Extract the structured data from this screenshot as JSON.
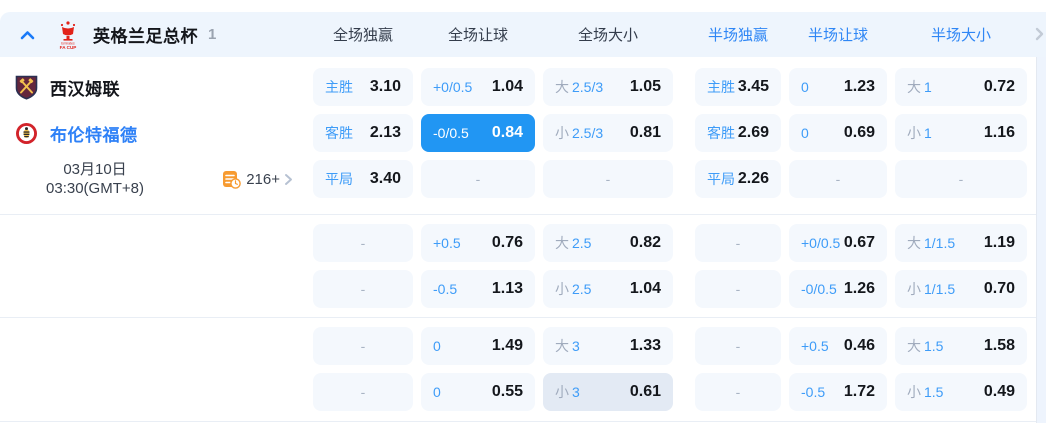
{
  "header": {
    "league_title": "英格兰足总杯",
    "match_count": "1",
    "columns": [
      {
        "label": "全场独赢",
        "half": false
      },
      {
        "label": "全场让球",
        "half": false
      },
      {
        "label": "全场大小",
        "half": false
      },
      {
        "label": "半场独赢",
        "half": true
      },
      {
        "label": "半场让球",
        "half": true
      },
      {
        "label": "半场大小",
        "half": true
      }
    ]
  },
  "match": {
    "home_team": "西汉姆联",
    "away_team": "布伦特福德",
    "date": "03月10日",
    "time": "03:30(GMT+8)",
    "markets_count": "216+"
  },
  "colors": {
    "accent_blue": "#2e86f5",
    "label_blue": "#3e9cf8",
    "selected_cell_bg": "#2196f3",
    "cell_bg": "#f4f8fd",
    "dim_cell_bg": "#e3eaf4",
    "header_bg": "#eef5fd",
    "gray_label": "#a0abbd",
    "value_text": "#14171c",
    "markets_icon_orange": "#f79b31",
    "fa_cup_red": "#e2231a"
  },
  "odds": {
    "empty_placeholder": "-",
    "rows": [
      {
        "cells": [
          {
            "label": "主胜",
            "value": "3.10"
          },
          {
            "label": "+0/0.5",
            "value": "1.04"
          },
          {
            "gray": "大",
            "label": "2.5/3",
            "value": "1.05"
          },
          {
            "label": "主胜",
            "value": "3.45"
          },
          {
            "label": "0",
            "value": "1.23"
          },
          {
            "gray": "大",
            "label": "1",
            "value": "0.72"
          }
        ]
      },
      {
        "cells": [
          {
            "label": "客胜",
            "value": "2.13"
          },
          {
            "label": "-0/0.5",
            "value": "0.84",
            "selected": true
          },
          {
            "gray": "小",
            "label": "2.5/3",
            "value": "0.81"
          },
          {
            "label": "客胜",
            "value": "2.69"
          },
          {
            "label": "0",
            "value": "0.69"
          },
          {
            "gray": "小",
            "label": "1",
            "value": "1.16"
          }
        ]
      },
      {
        "cells": [
          {
            "label": "平局",
            "value": "3.40"
          },
          {
            "dash": true
          },
          {
            "dash": true
          },
          {
            "label": "平局",
            "value": "2.26"
          },
          {
            "dash": true
          },
          {
            "dash": true
          }
        ]
      },
      {
        "cells": [
          {
            "dash": true
          },
          {
            "label": "+0.5",
            "value": "0.76"
          },
          {
            "gray": "大",
            "label": "2.5",
            "value": "0.82"
          },
          {
            "dash": true
          },
          {
            "label": "+0/0.5",
            "value": "0.67"
          },
          {
            "gray": "大",
            "label": "1/1.5",
            "value": "1.19"
          }
        ]
      },
      {
        "cells": [
          {
            "dash": true
          },
          {
            "label": "-0.5",
            "value": "1.13"
          },
          {
            "gray": "小",
            "label": "2.5",
            "value": "1.04"
          },
          {
            "dash": true
          },
          {
            "label": "-0/0.5",
            "value": "1.26"
          },
          {
            "gray": "小",
            "label": "1/1.5",
            "value": "0.70"
          }
        ]
      },
      {
        "cells": [
          {
            "dash": true
          },
          {
            "label": "0",
            "value": "1.49"
          },
          {
            "gray": "大",
            "label": "3",
            "value": "1.33"
          },
          {
            "dash": true
          },
          {
            "label": "+0.5",
            "value": "0.46"
          },
          {
            "gray": "大",
            "label": "1.5",
            "value": "1.58"
          }
        ]
      },
      {
        "cells": [
          {
            "dash": true
          },
          {
            "label": "0",
            "value": "0.55"
          },
          {
            "gray": "小",
            "label": "3",
            "value": "0.61",
            "dim": true
          },
          {
            "dash": true
          },
          {
            "label": "-0.5",
            "value": "1.72"
          },
          {
            "gray": "小",
            "label": "1.5",
            "value": "0.49"
          }
        ]
      }
    ]
  }
}
